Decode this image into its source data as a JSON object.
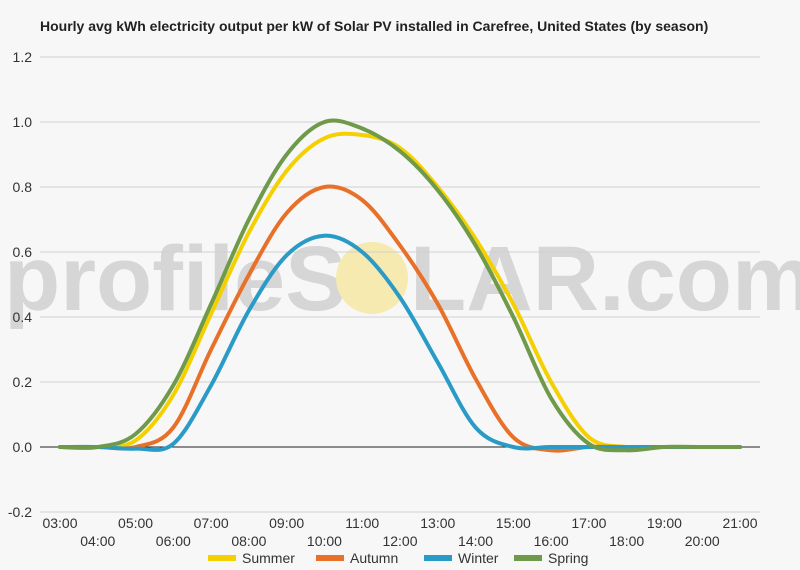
{
  "chart_data": {
    "type": "line",
    "title": "Hourly avg kWh electricity output per kW of Solar PV installed in Carefree, United States (by season)",
    "xlabel": "",
    "ylabel": "",
    "x": [
      "03:00",
      "04:00",
      "05:00",
      "06:00",
      "07:00",
      "08:00",
      "09:00",
      "10:00",
      "11:00",
      "12:00",
      "13:00",
      "14:00",
      "15:00",
      "16:00",
      "17:00",
      "18:00",
      "19:00",
      "20:00",
      "21:00"
    ],
    "y_ticks": [
      "1.2",
      "1.0",
      "0.8",
      "0.6",
      "0.4",
      "0.2",
      "0.0",
      "-0.2"
    ],
    "ylim": [
      -0.2,
      1.2
    ],
    "grid": true,
    "legend_position": "bottom",
    "series": [
      {
        "name": "Summer",
        "color": "#f5d000",
        "values": [
          0,
          0,
          0.02,
          0.16,
          0.41,
          0.66,
          0.85,
          0.95,
          0.96,
          0.92,
          0.8,
          0.64,
          0.44,
          0.2,
          0.03,
          0,
          0,
          0,
          0
        ]
      },
      {
        "name": "Autumn",
        "color": "#e8712a",
        "values": [
          0,
          0,
          0,
          0.06,
          0.3,
          0.53,
          0.72,
          0.8,
          0.76,
          0.62,
          0.44,
          0.21,
          0.03,
          -0.01,
          0,
          0,
          0,
          0,
          0
        ]
      },
      {
        "name": "Winter",
        "color": "#2a9ac6",
        "values": [
          0,
          0,
          -0.005,
          0.01,
          0.19,
          0.42,
          0.59,
          0.65,
          0.6,
          0.46,
          0.26,
          0.06,
          0,
          0,
          0,
          0,
          0,
          0,
          0
        ]
      },
      {
        "name": "Spring",
        "color": "#6f9a4a",
        "values": [
          0,
          0,
          0.04,
          0.19,
          0.44,
          0.7,
          0.9,
          1.0,
          0.98,
          0.91,
          0.79,
          0.62,
          0.4,
          0.15,
          0.01,
          -0.01,
          0,
          0,
          0
        ]
      }
    ]
  },
  "watermark": {
    "text_left": "profileS",
    "text_right": "LAR.com",
    "sun_color": "#f6eab0"
  }
}
